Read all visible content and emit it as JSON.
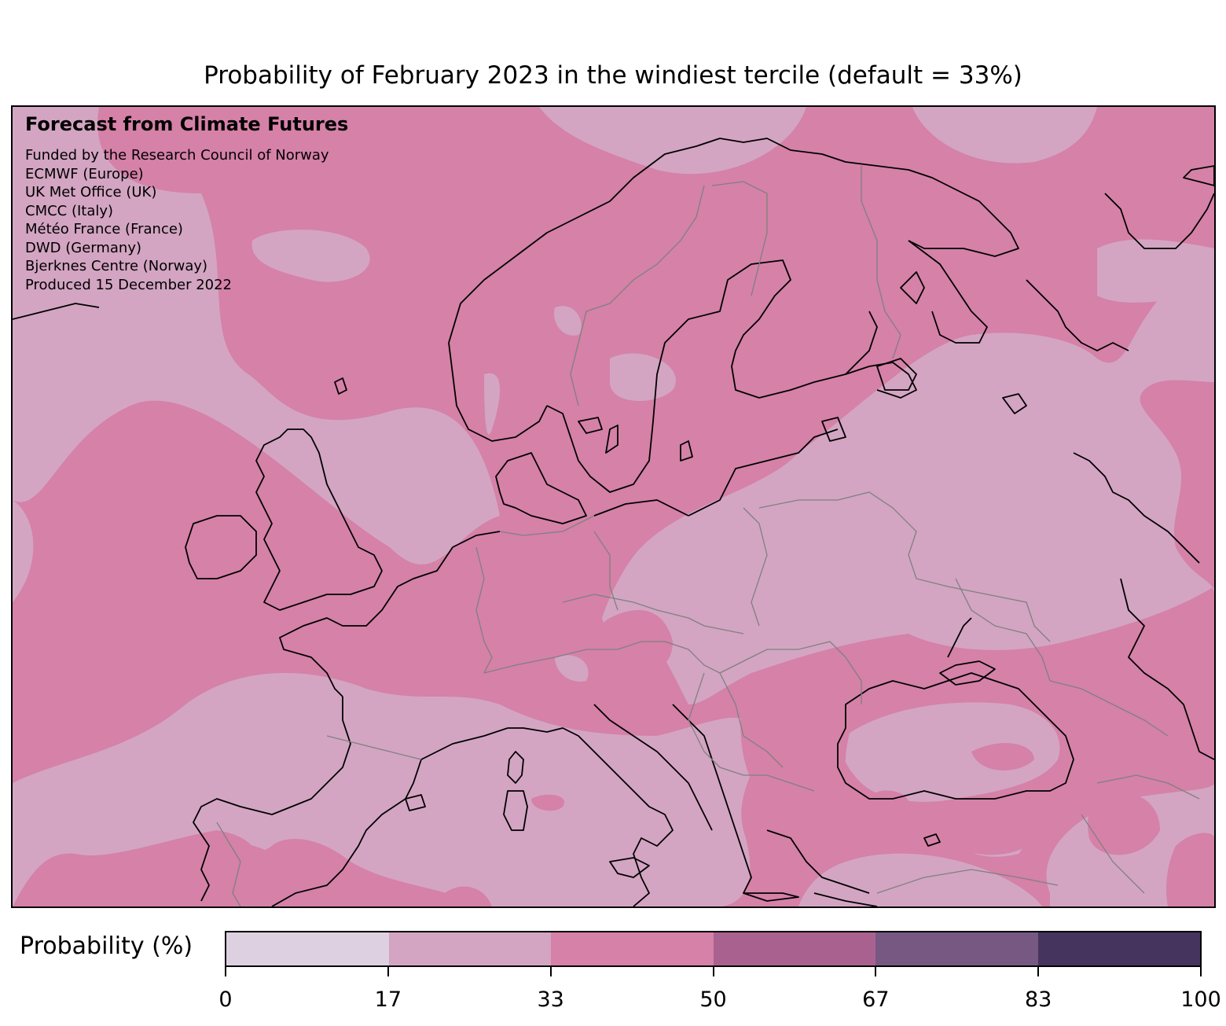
{
  "title": "Probability of February 2023 in the windiest tercile (default = 33%)",
  "credits": {
    "heading": "Forecast from Climate Futures",
    "lines": [
      "Funded by the Research Council of Norway",
      "ECMWF (Europe)",
      "UK Met Office (UK)",
      "CMCC (Italy)",
      "Météo France (France)",
      "DWD (Germany)",
      "Bjerknes Centre (Norway)",
      "Produced 15 December 2022"
    ]
  },
  "legend": {
    "label": "Probability (%)",
    "ticks": [
      "0",
      "17",
      "33",
      "50",
      "67",
      "83",
      "100"
    ],
    "colors": [
      "#ddd0e1",
      "#d3a5c2",
      "#d3a5c2",
      "#d581a8",
      "#a9628f",
      "#775883",
      "#45345e"
    ]
  },
  "map_colors": {
    "band_17_33": "#d3a5c2",
    "band_33_50": "#d581a8",
    "coastline": "#000000",
    "borders": "#808080"
  }
}
